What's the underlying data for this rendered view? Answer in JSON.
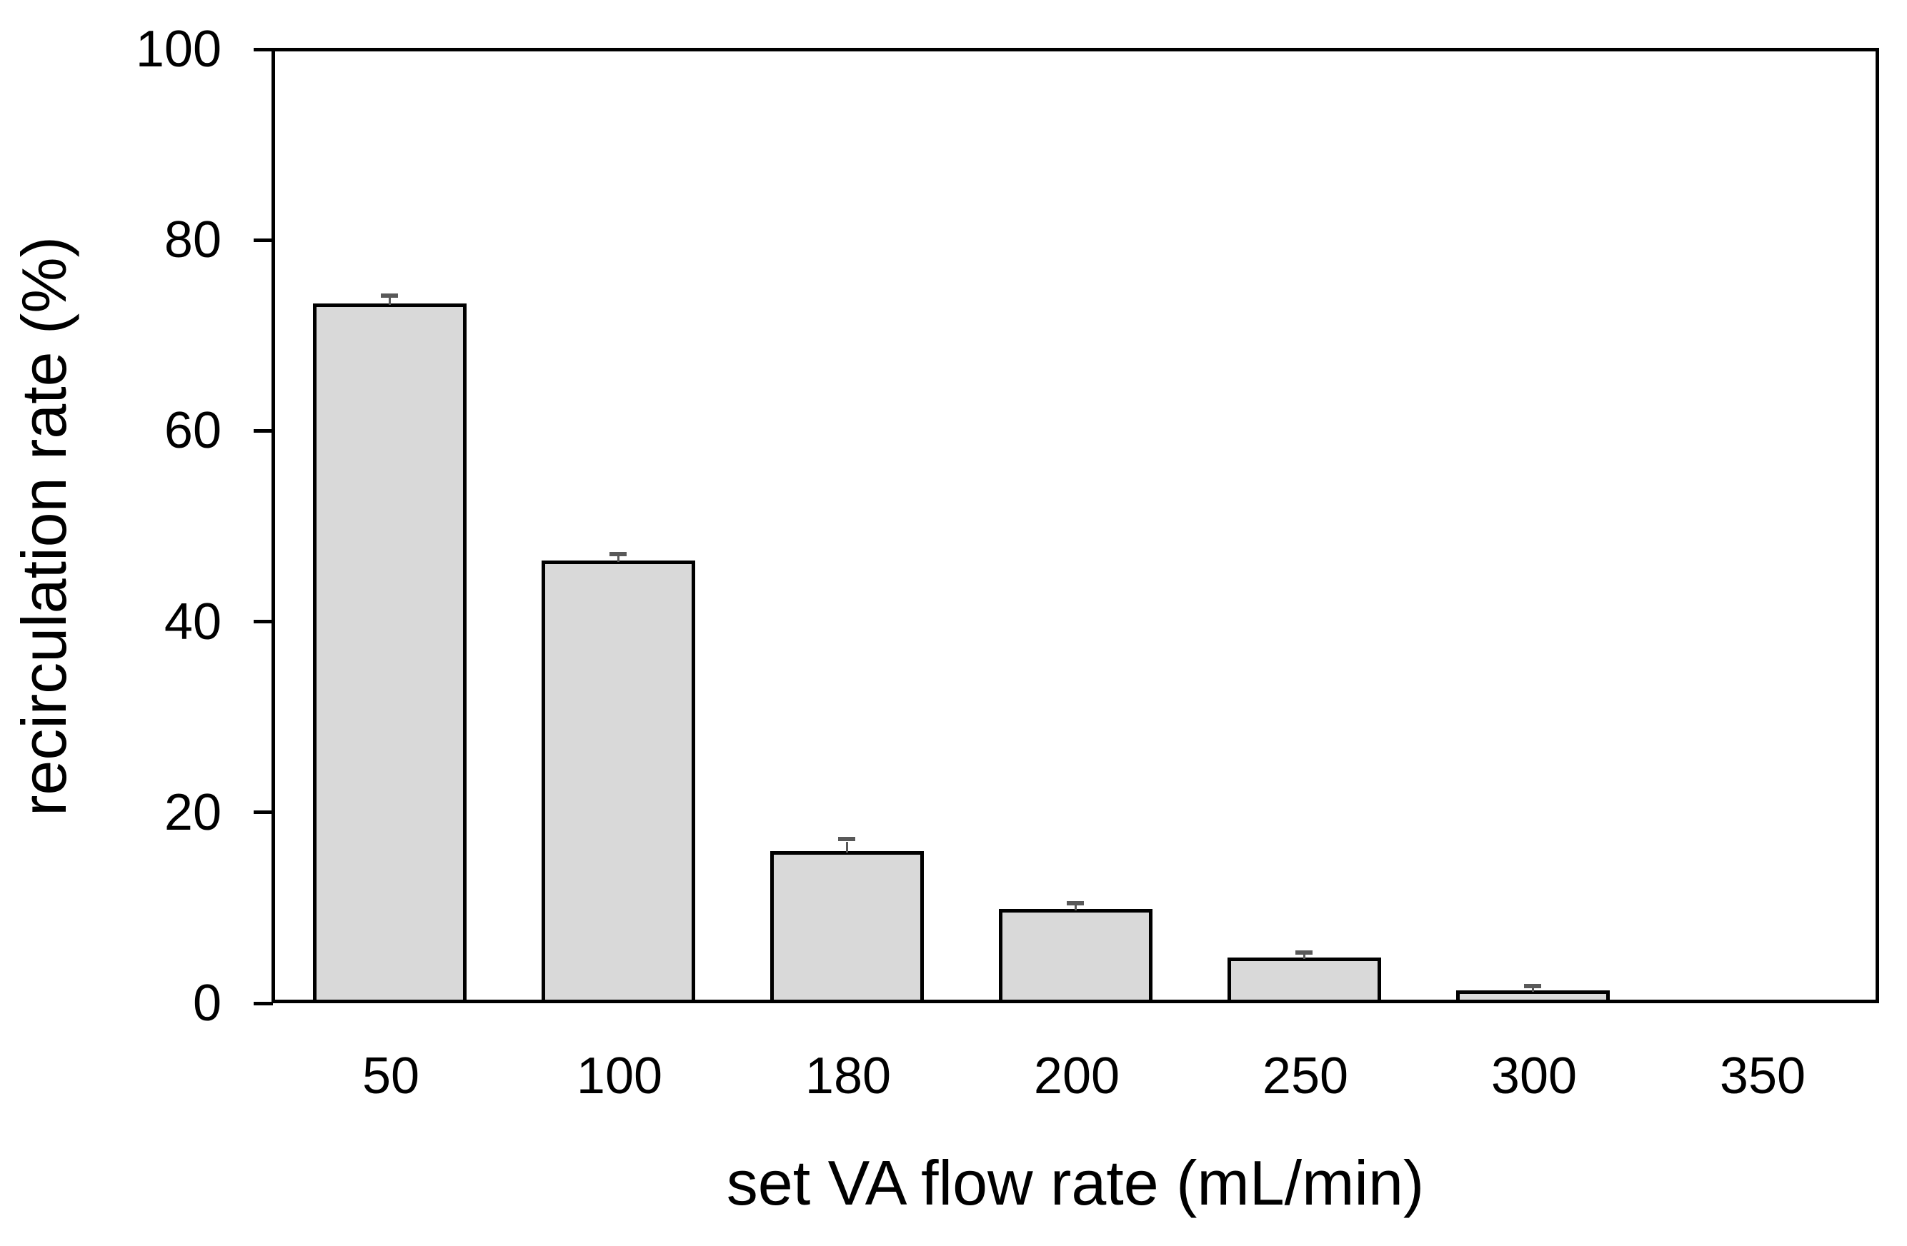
{
  "chart_data": {
    "type": "bar",
    "title": "",
    "xlabel": "set VA flow rate (mL/min)",
    "ylabel": "recirculation rate (%)",
    "categories": [
      "50",
      "100",
      "180",
      "200",
      "250",
      "300",
      "350"
    ],
    "values": [
      73,
      46,
      15.6,
      9.5,
      4.4,
      1,
      0
    ],
    "error_plus": [
      0.6,
      0.5,
      1.0,
      0.4,
      0.3,
      0.2,
      0
    ],
    "ylim": [
      0,
      100
    ],
    "yticks": [
      0,
      20,
      40,
      60,
      80,
      100
    ],
    "grid": false,
    "legend": "none",
    "plot_border": "full-box",
    "colors": {
      "bar_fill": "#d9d9d9",
      "bar_border": "#000000",
      "error_bar": "#595959",
      "axis": "#000000",
      "background": "#ffffff",
      "text": "#000000"
    }
  }
}
